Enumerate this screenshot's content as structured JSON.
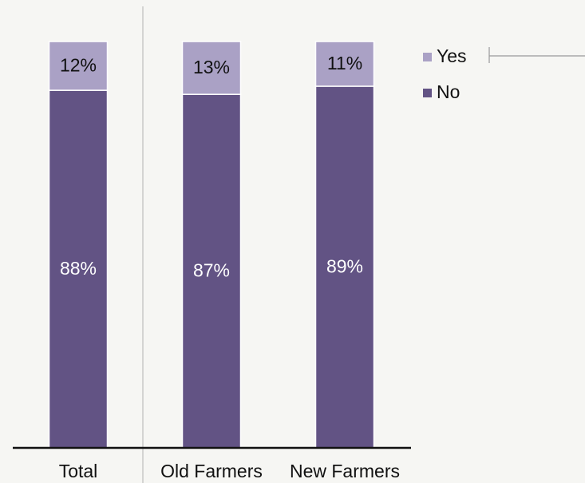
{
  "chart_data": {
    "type": "bar",
    "stacked": true,
    "categories": [
      "Total",
      "Old Farmers",
      "New Farmers"
    ],
    "series": [
      {
        "name": "No",
        "values": [
          88,
          87,
          89
        ],
        "labels": [
          "88%",
          "87%",
          "89%"
        ],
        "color": "#625384",
        "label_color": "#ffffff"
      },
      {
        "name": "Yes",
        "values": [
          12,
          13,
          11
        ],
        "labels": [
          "12%",
          "13%",
          "11%"
        ],
        "color": "#aaa1c5",
        "label_color": "#111111"
      }
    ],
    "ylim": [
      0,
      100
    ],
    "grid": false,
    "legend_position": "top-right",
    "legend_order": [
      "Yes",
      "No"
    ]
  }
}
